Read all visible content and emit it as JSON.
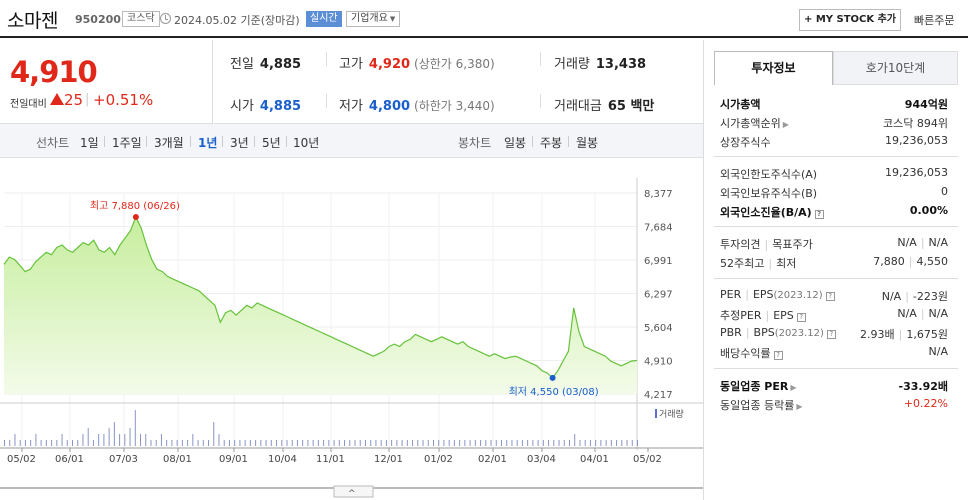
{
  "header": {
    "name": "소마젠",
    "code": "950200",
    "market": "코스닥",
    "date": "2024.05.02 기준(장마감)",
    "live": "실시간",
    "company_btn": "기업개요",
    "mystock": "+ MY STOCK 추가",
    "quick_order": "빠른주문"
  },
  "price": {
    "current": "4,910",
    "change_label": "전일대비",
    "change": "25",
    "change_pct": "+0.51%"
  },
  "stats": {
    "prev_label": "전일",
    "prev": "4,885",
    "high_label": "고가",
    "high": "4,920",
    "upper_limit": "(상한가 6,380)",
    "volume_label": "거래량",
    "volume": "13,438",
    "open_label": "시가",
    "open": "4,885",
    "low_label": "저가",
    "low": "4,800",
    "lower_limit": "(하한가 3,440)",
    "amount_label": "거래대금",
    "amount": "65 백만"
  },
  "period_bar": {
    "line_label": "선차트",
    "periods": [
      "1일",
      "1주일",
      "3개월",
      "1년",
      "3년",
      "5년",
      "10년"
    ],
    "active_period": "1년",
    "candle_label": "봉차트",
    "candles": [
      "일봉",
      "주봉",
      "월봉"
    ]
  },
  "chart_data": {
    "type": "area",
    "y_ticks": [
      "8,377",
      "7,684",
      "6,991",
      "6,297",
      "5,604",
      "4,910",
      "4,217"
    ],
    "ylim": [
      4217,
      8377
    ],
    "x_ticks": [
      "05/02",
      "06/01",
      "07/03",
      "08/01",
      "09/01",
      "10/04",
      "11/01",
      "12/01",
      "01/02",
      "02/01",
      "03/04",
      "04/01",
      "05/02"
    ],
    "max_label": "최고 7,880 (06/26)",
    "min_label": "최저 4,550 (03/08)",
    "volume_label": "거래량",
    "price_series": [
      6900,
      7050,
      7000,
      6880,
      6750,
      6800,
      6950,
      7050,
      7150,
      7100,
      7250,
      7300,
      7200,
      7150,
      7250,
      7350,
      7300,
      7400,
      7200,
      7150,
      7250,
      7100,
      7300,
      7450,
      7600,
      7880,
      7650,
      7300,
      7000,
      6800,
      6750,
      6650,
      6600,
      6550,
      6500,
      6450,
      6400,
      6350,
      6250,
      6150,
      6050,
      5700,
      5900,
      5950,
      5850,
      5950,
      6050,
      6000,
      6100,
      6050,
      6000,
      5950,
      5900,
      5850,
      5800,
      5750,
      5700,
      5650,
      5600,
      5550,
      5500,
      5450,
      5400,
      5350,
      5300,
      5250,
      5200,
      5150,
      5100,
      5050,
      5000,
      5050,
      5100,
      5200,
      5250,
      5200,
      5300,
      5350,
      5450,
      5400,
      5350,
      5300,
      5350,
      5400,
      5350,
      5300,
      5250,
      5300,
      5200,
      5150,
      5100,
      5050,
      5000,
      5050,
      5000,
      4950,
      4980,
      5000,
      4950,
      4900,
      4850,
      4800,
      4700,
      4650,
      4550,
      4700,
      4900,
      5100,
      6000,
      5500,
      5200,
      5150,
      5100,
      5050,
      5000,
      4900,
      4850,
      4800,
      4850,
      4900,
      4910
    ],
    "volume_series": [
      1,
      1,
      2,
      1,
      1,
      1,
      2,
      1,
      1,
      1,
      1,
      2,
      1,
      1,
      1,
      2,
      3,
      1,
      2,
      2,
      3,
      4,
      2,
      2,
      3,
      6,
      2,
      2,
      1,
      1,
      2,
      1,
      1,
      1,
      1,
      1,
      2,
      1,
      1,
      1,
      4,
      2,
      1,
      1,
      1,
      1,
      1,
      1,
      1,
      1,
      1,
      1,
      1,
      1,
      1,
      1,
      1,
      1,
      1,
      1,
      1,
      1,
      1,
      1,
      1,
      1,
      1,
      1,
      1,
      1,
      1,
      1,
      1,
      1,
      1,
      1,
      1,
      1,
      1,
      1,
      1,
      1,
      1,
      1,
      1,
      1,
      1,
      1,
      1,
      1,
      1,
      1,
      1,
      1,
      1,
      1,
      1,
      1,
      1,
      1,
      1,
      1,
      1,
      1,
      1,
      1,
      1,
      1,
      1,
      2,
      1,
      1,
      1,
      1,
      1,
      1,
      1,
      1,
      1,
      1,
      1,
      1
    ]
  },
  "side": {
    "tab_active": "투자정보",
    "tab_other": "호가10단계",
    "market_cap_label": "시가총액",
    "market_cap": "944억원",
    "rank_label": "시가총액순위",
    "rank": "코스닥 894위",
    "shares_label": "상장주식수",
    "shares": "19,236,053",
    "foreign_limit_label": "외국인한도주식수(A)",
    "foreign_limit": "19,236,053",
    "foreign_hold_label": "외국인보유주식수(B)",
    "foreign_hold": "0",
    "foreign_ratio_label": "외국인소진율(B/A)",
    "foreign_ratio": "0.00%",
    "opinion_label": "투자의견",
    "target_label": "목표주가",
    "opinion": "N/A",
    "target": "N/A",
    "w52_high_label": "52주최고",
    "w52_low_label": "최저",
    "w52_high": "7,880",
    "w52_low": "4,550",
    "per_label": "PER",
    "eps_label": "EPS",
    "per_year": "(2023.12)",
    "per": "N/A",
    "eps": "-223원",
    "est_per_label": "추정PER",
    "est_eps_label": "EPS",
    "est_per": "N/A",
    "est_eps": "N/A",
    "pbr_label": "PBR",
    "bps_label": "BPS",
    "bps_year": "(2023.12)",
    "pbr": "2.93배",
    "bps": "1,675원",
    "dividend_label": "배당수익률",
    "dividend": "N/A",
    "ind_per_label": "동일업종 PER",
    "ind_per": "-33.92배",
    "ind_change_label": "동일업종 등락률",
    "ind_change": "+0.22%"
  }
}
